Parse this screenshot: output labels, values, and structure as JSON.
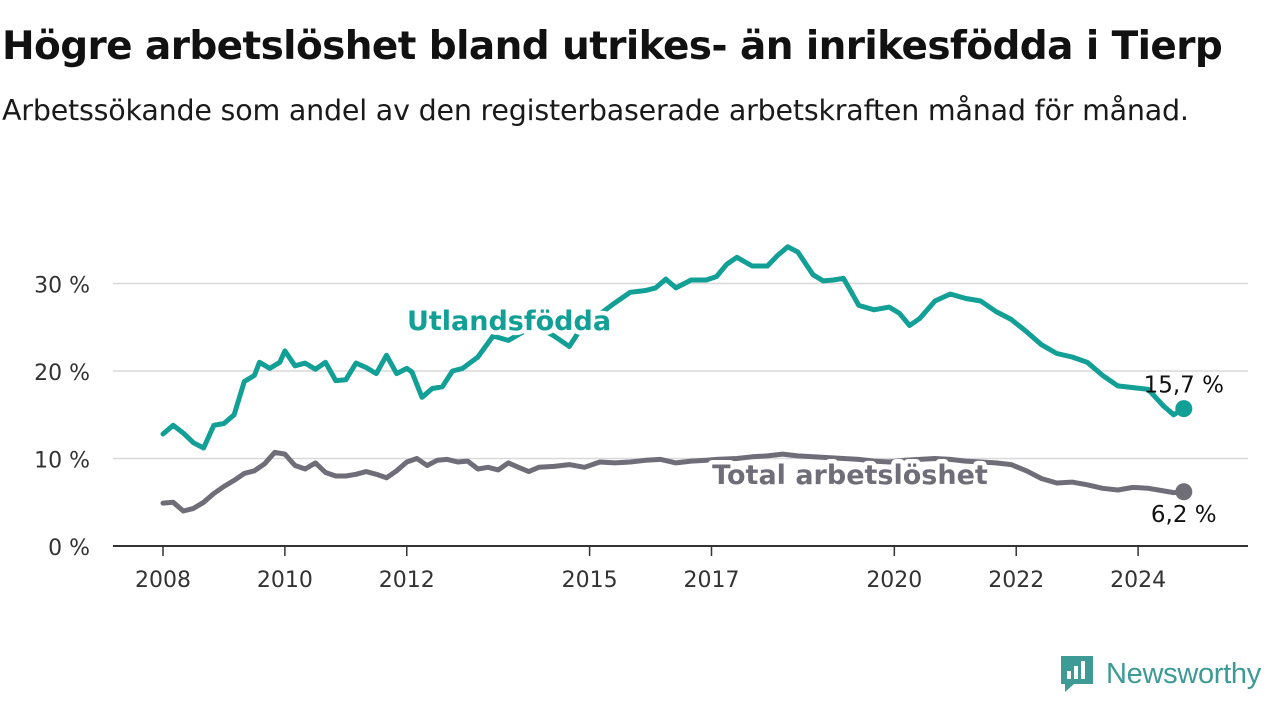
{
  "title": "Högre arbetslöshet bland utrikes- än inrikesfödda i Tierp",
  "subtitle": "Arbetssökande som andel av den registerbaserade arbetskraften månad för månad.",
  "logo": {
    "text": "Newsworthy",
    "icon": "newsworthy-logo-icon",
    "color": "#3d9a94"
  },
  "chart_data": {
    "type": "line",
    "title": "Högre arbetslöshet bland utrikes- än inrikesfödda i Tierp",
    "subtitle": "Arbetssökande som andel av den registerbaserade arbetskraften månad för månad.",
    "xlabel": "",
    "ylabel": "",
    "x_range": [
      "2008-01",
      "2024-12"
    ],
    "ylim": [
      0,
      35
    ],
    "yticks": [
      0,
      10,
      20,
      30
    ],
    "ytick_labels": [
      "0 %",
      "10 %",
      "20 %",
      "30 %"
    ],
    "xticks": [
      "2008",
      "2010",
      "2012",
      "2015",
      "2017",
      "2020",
      "2022",
      "2024"
    ],
    "grid": "horizontal",
    "legend": "inline labels",
    "series": [
      {
        "name": "Utlandsfödda",
        "color": "#12a096",
        "end_label": "15,7 %",
        "x": [
          "2008-01",
          "2008-03",
          "2008-05",
          "2008-07",
          "2008-09",
          "2008-11",
          "2009-01",
          "2009-03",
          "2009-05",
          "2009-07",
          "2009-08",
          "2009-10",
          "2009-12",
          "2010-01",
          "2010-03",
          "2010-05",
          "2010-07",
          "2010-09",
          "2010-11",
          "2011-01",
          "2011-03",
          "2011-05",
          "2011-07",
          "2011-09",
          "2011-11",
          "2012-01",
          "2012-02",
          "2012-04",
          "2012-06",
          "2012-08",
          "2012-10",
          "2012-12",
          "2013-03",
          "2013-06",
          "2013-09",
          "2013-12",
          "2014-03",
          "2014-06",
          "2014-09",
          "2014-12",
          "2015-03",
          "2015-06",
          "2015-09",
          "2015-12",
          "2016-02",
          "2016-04",
          "2016-06",
          "2016-09",
          "2016-12",
          "2017-02",
          "2017-04",
          "2017-06",
          "2017-09",
          "2017-12",
          "2018-02",
          "2018-04",
          "2018-06",
          "2018-09",
          "2018-11",
          "2019-01",
          "2019-03",
          "2019-06",
          "2019-09",
          "2019-12",
          "2020-02",
          "2020-04",
          "2020-06",
          "2020-09",
          "2020-12",
          "2021-03",
          "2021-06",
          "2021-09",
          "2021-12",
          "2022-03",
          "2022-06",
          "2022-09",
          "2022-12",
          "2023-03",
          "2023-06",
          "2023-09",
          "2023-12",
          "2024-03",
          "2024-06",
          "2024-08",
          "2024-10"
        ],
        "values": [
          12.8,
          13.8,
          12.9,
          11.8,
          11.2,
          13.8,
          14.0,
          15.0,
          18.8,
          19.5,
          21.0,
          20.3,
          21.0,
          22.3,
          20.6,
          20.9,
          20.2,
          21.0,
          18.9,
          19.0,
          20.9,
          20.4,
          19.7,
          21.8,
          19.7,
          20.3,
          19.9,
          17.0,
          18.0,
          18.2,
          20.0,
          20.3,
          21.6,
          24.0,
          23.5,
          24.5,
          25.0,
          24.0,
          22.8,
          25.5,
          26.5,
          27.8,
          29.0,
          29.2,
          29.5,
          30.5,
          29.5,
          30.4,
          30.4,
          30.8,
          32.2,
          33.0,
          32.0,
          32.0,
          33.2,
          34.2,
          33.6,
          31.0,
          30.3,
          30.4,
          30.6,
          27.5,
          27.0,
          27.3,
          26.6,
          25.2,
          26.0,
          28.0,
          28.8,
          28.3,
          28.0,
          26.8,
          25.9,
          24.5,
          23.0,
          22.0,
          21.6,
          21.0,
          19.5,
          18.3,
          18.1,
          17.9,
          16.0,
          15.0,
          15.7
        ]
      },
      {
        "name": "Total arbetslöshet",
        "color": "#6f6e78",
        "end_label": "6,2 %",
        "x": [
          "2008-01",
          "2008-03",
          "2008-05",
          "2008-07",
          "2008-09",
          "2008-11",
          "2009-01",
          "2009-03",
          "2009-05",
          "2009-07",
          "2009-09",
          "2009-11",
          "2010-01",
          "2010-03",
          "2010-05",
          "2010-07",
          "2010-09",
          "2010-11",
          "2011-01",
          "2011-03",
          "2011-05",
          "2011-07",
          "2011-09",
          "2011-11",
          "2012-01",
          "2012-03",
          "2012-05",
          "2012-07",
          "2012-09",
          "2012-11",
          "2013-01",
          "2013-03",
          "2013-05",
          "2013-07",
          "2013-09",
          "2013-11",
          "2014-01",
          "2014-03",
          "2014-06",
          "2014-09",
          "2014-12",
          "2015-03",
          "2015-06",
          "2015-09",
          "2015-12",
          "2016-03",
          "2016-06",
          "2016-09",
          "2016-12",
          "2017-02",
          "2017-06",
          "2017-09",
          "2017-12",
          "2018-03",
          "2018-06",
          "2018-09",
          "2018-12",
          "2019-03",
          "2019-06",
          "2019-09",
          "2019-12",
          "2020-03",
          "2020-06",
          "2020-09",
          "2020-12",
          "2021-03",
          "2021-06",
          "2021-09",
          "2021-12",
          "2022-03",
          "2022-06",
          "2022-09",
          "2022-12",
          "2023-03",
          "2023-06",
          "2023-09",
          "2023-12",
          "2024-03",
          "2024-06",
          "2024-08",
          "2024-10"
        ],
        "values": [
          4.9,
          5.0,
          4.0,
          4.3,
          5.0,
          6.0,
          6.8,
          7.5,
          8.3,
          8.6,
          9.4,
          10.7,
          10.5,
          9.2,
          8.8,
          9.5,
          8.4,
          8.0,
          8.0,
          8.2,
          8.5,
          8.2,
          7.8,
          8.6,
          9.6,
          10.0,
          9.2,
          9.8,
          9.9,
          9.6,
          9.7,
          8.8,
          9.0,
          8.7,
          9.5,
          9.0,
          8.5,
          9.0,
          9.1,
          9.3,
          9.0,
          9.6,
          9.5,
          9.6,
          9.8,
          9.9,
          9.5,
          9.7,
          9.8,
          9.9,
          10.0,
          10.2,
          10.3,
          10.5,
          10.3,
          10.2,
          10.1,
          10.0,
          9.9,
          9.7,
          9.6,
          9.8,
          9.9,
          10.0,
          9.9,
          9.7,
          9.6,
          9.5,
          9.3,
          8.6,
          7.7,
          7.2,
          7.3,
          7.0,
          6.6,
          6.4,
          6.7,
          6.6,
          6.3,
          6.1,
          6.2
        ]
      }
    ]
  }
}
